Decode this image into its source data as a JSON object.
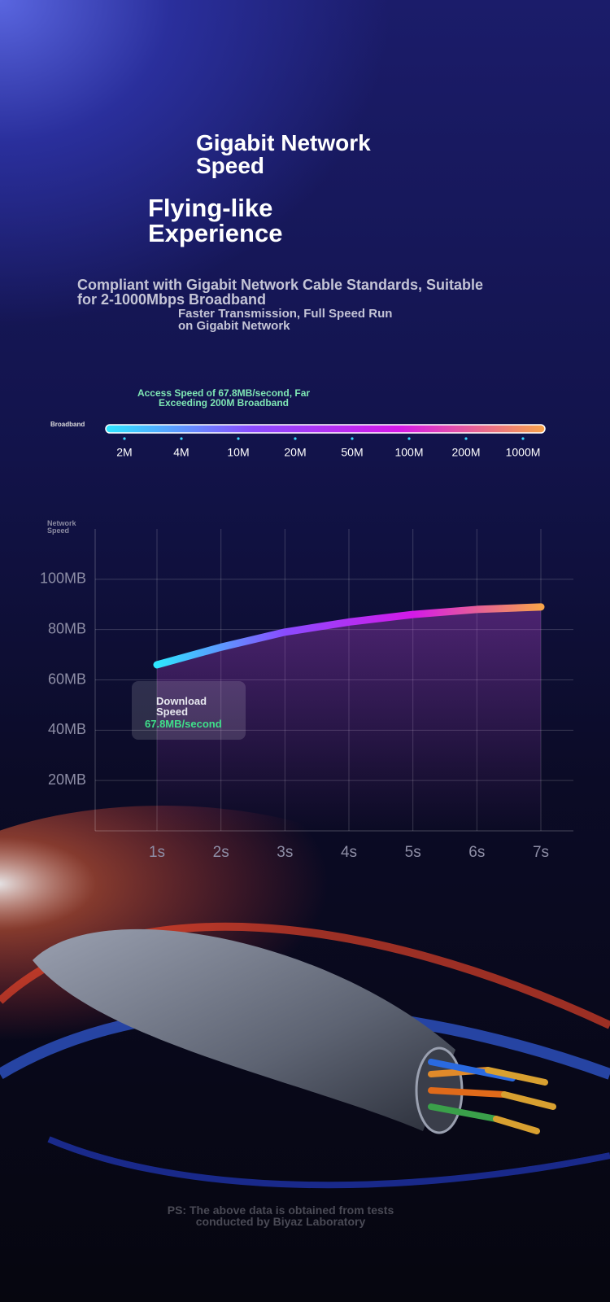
{
  "header": {
    "title": "Gigabit Network Speed",
    "subtitle": "Flying-like Experience",
    "description": "Compliant with Gigabit Network Cable Standards, Suitable for 2-1000Mbps Broadband",
    "tagline": "Faster Transmission, Full Speed Run on Gigabit Network"
  },
  "broadband": {
    "label": "Broadband",
    "note": "Access Speed of 67.8MB/second, Far Exceeding 200M Broadband",
    "levels": [
      "2M",
      "4M",
      "10M",
      "20M",
      "50M",
      "100M",
      "200M",
      "1000M"
    ]
  },
  "chart_data": {
    "type": "line",
    "ylabel": "Network Speed",
    "categories": [
      "1s",
      "2s",
      "3s",
      "4s",
      "5s",
      "6s",
      "7s"
    ],
    "values": [
      66,
      73,
      79,
      83,
      86,
      88,
      89
    ],
    "colors": [
      "#2ee6ff",
      "#8a4bff",
      "#d419e8",
      "#f7a34a"
    ],
    "ylim": [
      0,
      120
    ],
    "yticks": [
      {
        "value": 20,
        "label": "20MB"
      },
      {
        "value": 40,
        "label": "40MB"
      },
      {
        "value": 60,
        "label": "60MB"
      },
      {
        "value": 80,
        "label": "80MB"
      },
      {
        "value": 100,
        "label": "100MB"
      }
    ],
    "grid": true,
    "annotation": {
      "title": "Download Speed",
      "value": "67.8MB/second"
    }
  },
  "footer": "PS: The above data is obtained from tests conducted by Biyaz Laboratory"
}
